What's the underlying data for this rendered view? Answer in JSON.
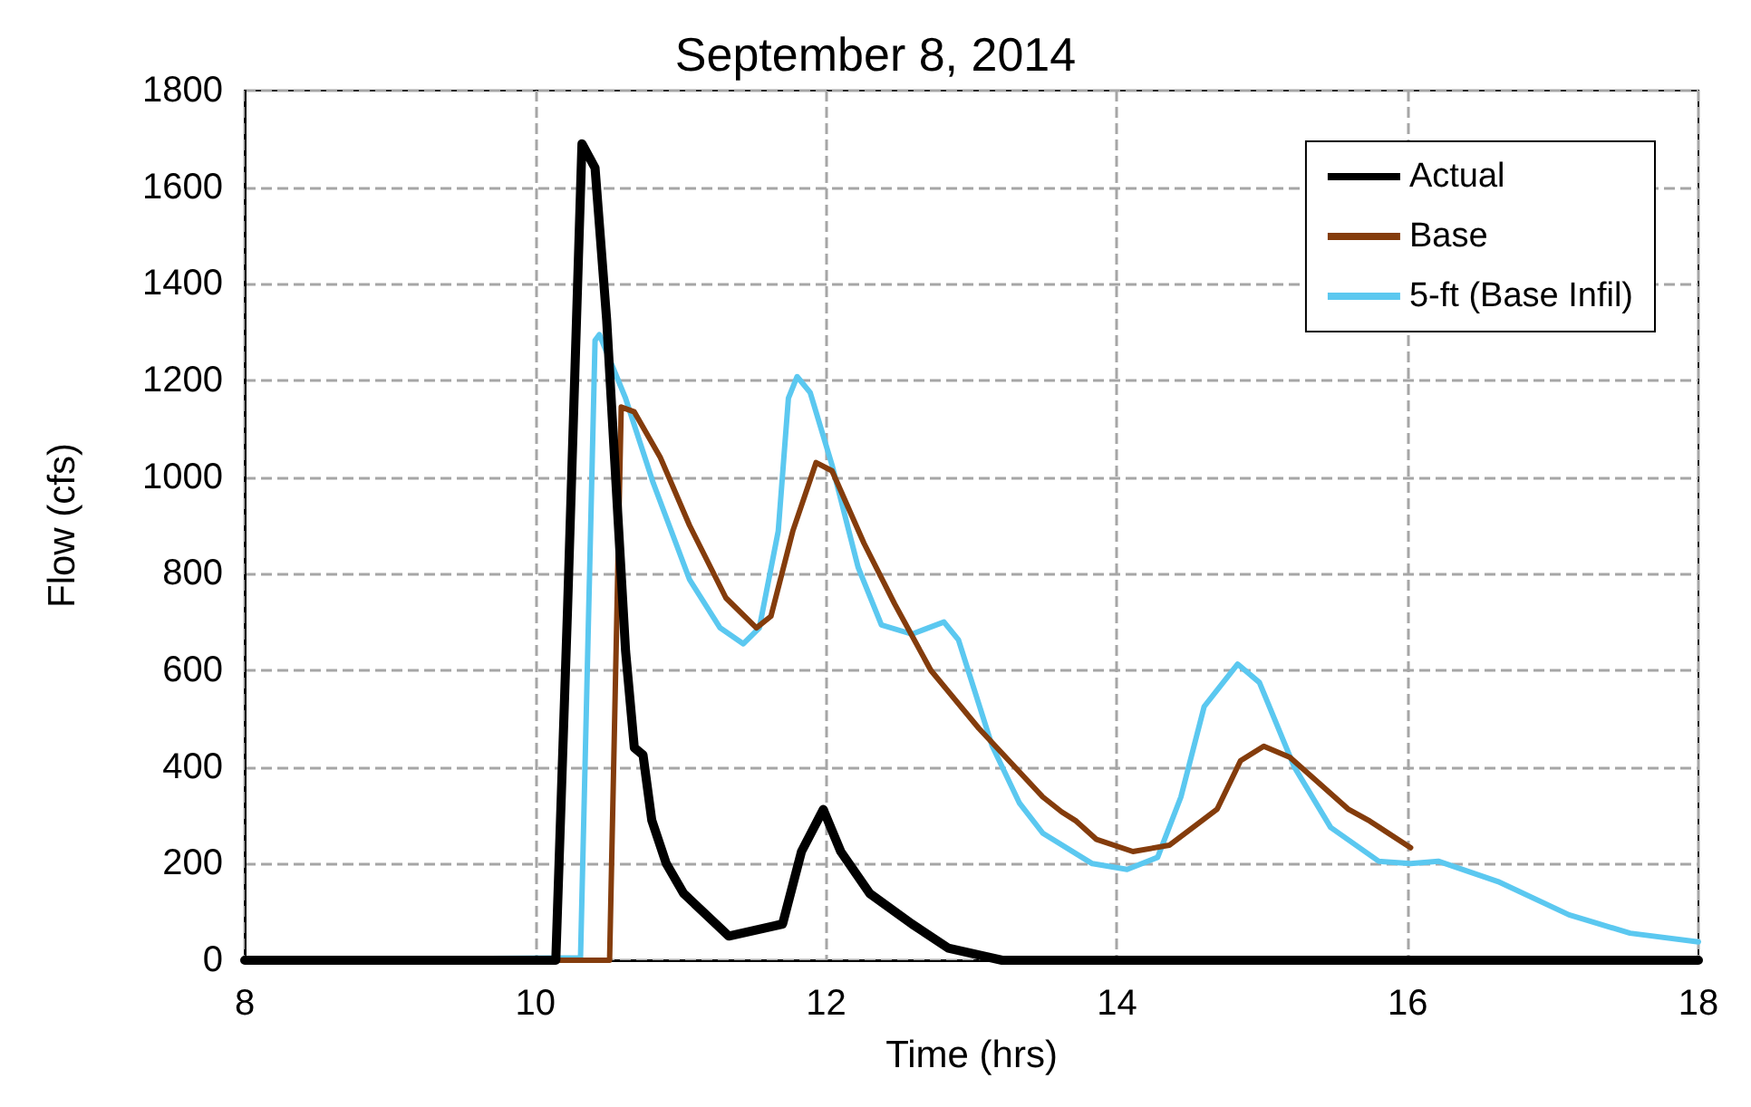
{
  "chart_data": {
    "type": "line",
    "title": "September 8, 2014",
    "xlabel": "Time (hrs)",
    "ylabel": "Flow (cfs)",
    "xlim": [
      8,
      18
    ],
    "xticks": [
      8,
      10,
      12,
      14,
      16,
      18
    ],
    "ylim": [
      0,
      1800
    ],
    "yticks": [
      0,
      200,
      400,
      600,
      800,
      1000,
      1200,
      1400,
      1600,
      1800
    ],
    "grid": true,
    "legend": "top right",
    "marker": "none",
    "line_style": "solid",
    "series": [
      {
        "name": "Actual",
        "color": "#000000",
        "x": [
          8,
          10.14,
          10.22,
          10.32,
          10.41,
          10.49,
          10.62,
          10.68,
          10.74,
          10.8,
          10.9,
          11.02,
          11.33,
          11.7,
          11.83,
          11.98,
          12.1,
          12.3,
          12.59,
          12.84,
          13.21,
          18
        ],
        "values": [
          0,
          0,
          720,
          1690,
          1640,
          1325,
          640,
          440,
          425,
          290,
          200,
          138,
          50,
          75,
          225,
          312,
          225,
          138,
          75,
          25,
          0,
          0
        ]
      },
      {
        "name": "Base",
        "color": "#843c0c",
        "x": [
          8,
          10.51,
          10.59,
          10.68,
          10.86,
          11.06,
          11.31,
          11.52,
          11.62,
          11.77,
          11.93,
          12.04,
          12.26,
          12.47,
          12.72,
          13.05,
          13.49,
          13.62,
          13.72,
          13.86,
          14.11,
          14.36,
          14.69,
          14.85,
          15.01,
          15.19,
          15.59,
          15.74,
          16.02
        ],
        "values": [
          0,
          0,
          1145,
          1135,
          1040,
          900,
          750,
          688,
          712,
          888,
          1030,
          1013,
          863,
          738,
          600,
          480,
          338,
          307,
          288,
          250,
          225,
          238,
          313,
          413,
          443,
          420,
          313,
          288,
          233
        ]
      },
      {
        "name": "5-ft (Base Infil)",
        "color": "#5bc8f0",
        "x": [
          8,
          10.31,
          10.41,
          10.44,
          10.62,
          10.81,
          11.06,
          11.27,
          11.43,
          11.54,
          11.67,
          11.74,
          11.8,
          11.89,
          12.04,
          12.22,
          12.38,
          12.59,
          12.81,
          12.91,
          13.14,
          13.33,
          13.49,
          13.83,
          14.07,
          14.28,
          14.44,
          14.6,
          14.83,
          14.98,
          15.22,
          15.47,
          15.8,
          16.02,
          16.21,
          16.62,
          17.11,
          17.53,
          18
        ],
        "values": [
          0,
          5,
          1283,
          1295,
          1163,
          988,
          788,
          688,
          655,
          688,
          888,
          1163,
          1208,
          1175,
          1025,
          813,
          694,
          675,
          700,
          663,
          445,
          325,
          263,
          200,
          188,
          213,
          338,
          525,
          613,
          575,
          400,
          275,
          205,
          200,
          205,
          163,
          94,
          56,
          38
        ]
      }
    ]
  }
}
